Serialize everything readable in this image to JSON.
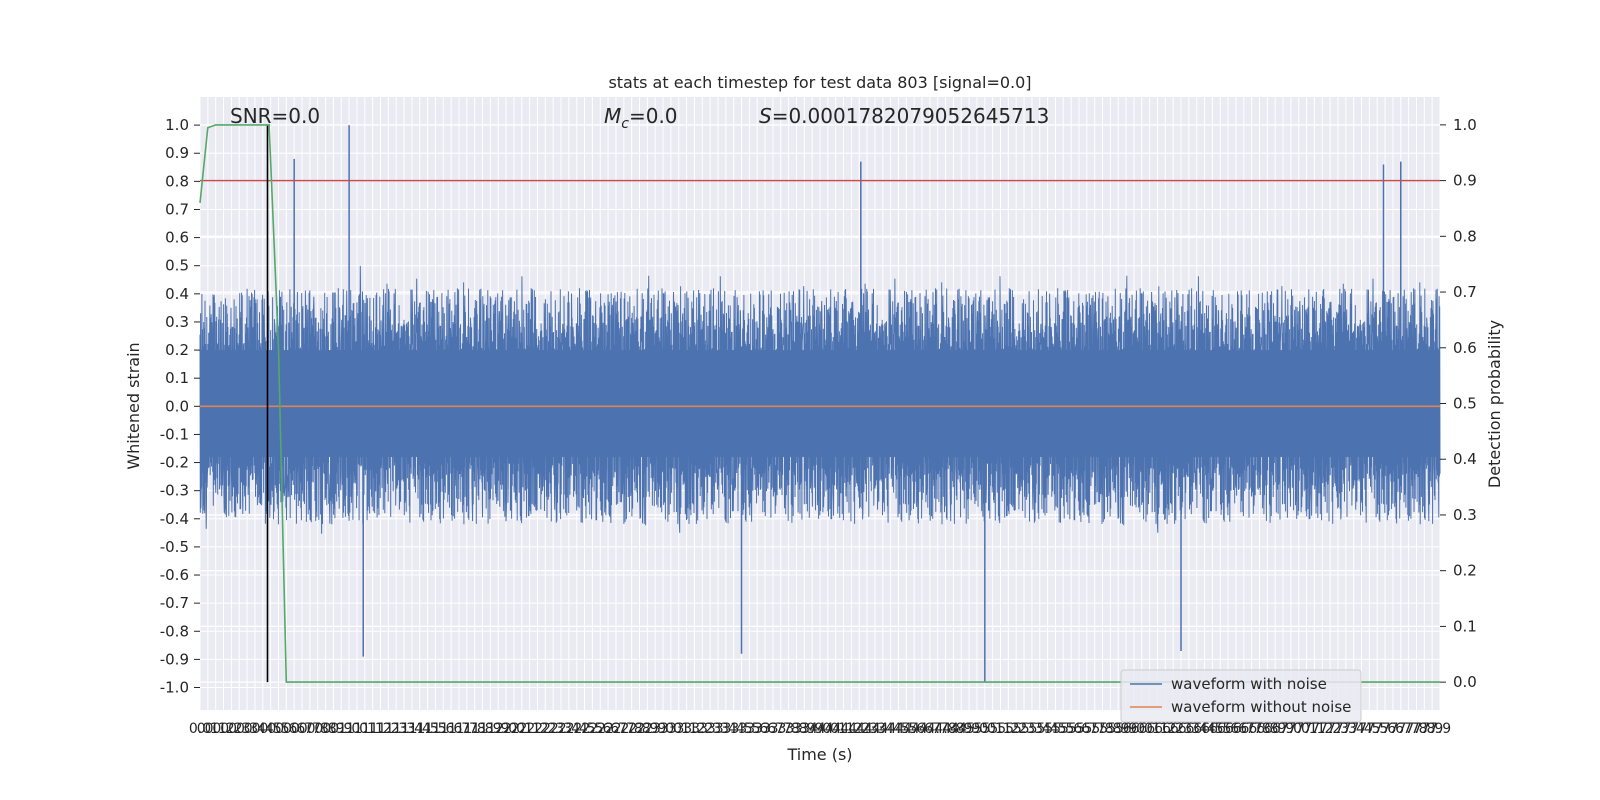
{
  "chart_data": {
    "type": "line",
    "title": "stats at each timestep for test data 803 [signal=0.0]",
    "xlabel": "Time (s)",
    "ylabel": "Whitened strain",
    "ylabel_right": "Detection probability",
    "xlim": [
      0.0,
      7.9
    ],
    "ylim": [
      -1.08,
      1.1
    ],
    "ylim_right": [
      -0.05,
      1.05
    ],
    "x_tick_step": 0.05,
    "y_ticks": [
      "1.0",
      "0.9",
      "0.8",
      "0.7",
      "0.6",
      "0.5",
      "0.4",
      "0.3",
      "0.2",
      "0.1",
      "0.0",
      "-0.1",
      "-0.2",
      "-0.3",
      "-0.4",
      "-0.5",
      "-0.6",
      "-0.7",
      "-0.8",
      "-0.9",
      "-1.0"
    ],
    "y_ticks_right": [
      "1.0",
      "0.9",
      "0.8",
      "0.7",
      "0.6",
      "0.5",
      "0.4",
      "0.3",
      "0.2",
      "0.1",
      "0.0"
    ],
    "grid": true,
    "legend_position": "bottom-right",
    "annotations": {
      "snr": "SNR=0.0",
      "mc_prefix": "M",
      "mc_sub": "c",
      "mc_suffix": "=0.0",
      "s_prefix": "S",
      "s_suffix": "=0.0001782079052645713"
    },
    "series": [
      {
        "name": "waveform with noise",
        "color": "#4c72b0",
        "axis": "left",
        "description_envelope_peaks": [
          {
            "x": 0.95,
            "y": 1.0
          },
          {
            "x": 0.6,
            "y": 0.88
          },
          {
            "x": 4.21,
            "y": 0.87
          },
          {
            "x": 7.54,
            "y": 0.86
          },
          {
            "x": 7.65,
            "y": 0.87
          },
          {
            "x": 5.0,
            "y": -0.98
          },
          {
            "x": 1.04,
            "y": -0.89
          },
          {
            "x": 3.45,
            "y": -0.88
          },
          {
            "x": 6.25,
            "y": -0.87
          }
        ]
      },
      {
        "name": "waveform without noise",
        "color": "#dd8452",
        "axis": "left",
        "values": [
          [
            0.0,
            0.0
          ],
          [
            7.9,
            0.0
          ]
        ]
      },
      {
        "name": "",
        "color": "#55a868",
        "axis": "right",
        "points": [
          [
            0.0,
            0.86
          ],
          [
            0.05,
            0.995
          ],
          [
            0.1,
            1.0
          ],
          [
            0.25,
            1.0
          ],
          [
            0.44,
            1.0
          ],
          [
            0.5,
            0.6
          ],
          [
            0.55,
            0.0
          ],
          [
            7.9,
            0.0
          ]
        ]
      }
    ],
    "threshold": {
      "value": 0.9,
      "axis": "right",
      "color": "#c44e52"
    },
    "marker": {
      "x": 0.43,
      "color": "#000000"
    },
    "legend": [
      {
        "label": "waveform with noise",
        "color": "#4c72b0"
      },
      {
        "label": "waveform without noise",
        "color": "#dd8452"
      }
    ]
  }
}
